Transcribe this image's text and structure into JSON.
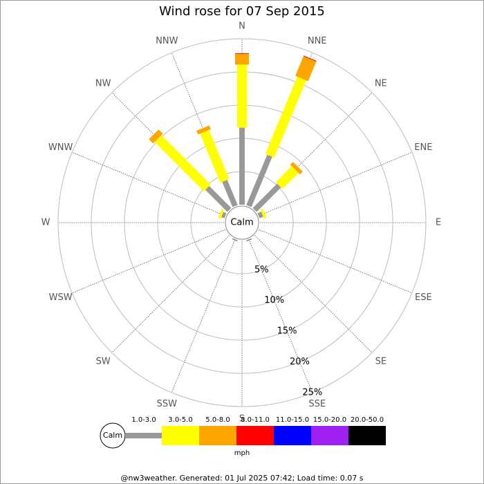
{
  "chart_data": {
    "type": "windrose",
    "title": "Wind rose for 07 Sep 2015",
    "calm_label": "Calm",
    "unit": "mph",
    "footer": "@nw3weather. Generated: 01 Jul 2025 07:42; Load time: 0.07 s",
    "categories": [
      "N",
      "NNE",
      "NE",
      "ENE",
      "E",
      "ESE",
      "SE",
      "SSE",
      "S",
      "SSW",
      "SW",
      "WSW",
      "W",
      "WNW",
      "NW",
      "NNW"
    ],
    "series": [
      {
        "name": "1.0-3.0",
        "color": "#999999",
        "values": [
          11.6,
          8.2,
          5.2,
          0.6,
          0,
          0,
          0,
          0.2,
          0,
          0.2,
          0,
          0,
          0,
          0.5,
          4.7,
          4.1
        ]
      },
      {
        "name": "3.0-5.0",
        "color": "#ffff00",
        "values": [
          9.5,
          12.6,
          3.4,
          0.4,
          0,
          0,
          0,
          0,
          0,
          0,
          0,
          0,
          0,
          0.4,
          10.5,
          8.0
        ]
      },
      {
        "name": "5.0-8.0",
        "color": "#ffa500",
        "values": [
          1.6,
          3.2,
          0.6,
          0,
          0,
          0,
          0,
          0,
          0,
          0,
          0,
          0,
          0,
          0,
          0.9,
          0.6
        ]
      },
      {
        "name": "8.0-11.0",
        "color": "#ff0000",
        "values": [
          0.1,
          0.1,
          0,
          0,
          0,
          0,
          0,
          0,
          0,
          0,
          0,
          0,
          0,
          0,
          0,
          0
        ]
      },
      {
        "name": "11.0-15.0",
        "color": "#0000ff",
        "values": [
          0,
          0,
          0,
          0,
          0,
          0,
          0,
          0,
          0,
          0,
          0,
          0,
          0,
          0,
          0,
          0
        ]
      },
      {
        "name": "15.0-20.0",
        "color": "#a020f0",
        "values": [
          0,
          0,
          0,
          0,
          0,
          0,
          0,
          0,
          0,
          0,
          0,
          0,
          0,
          0,
          0,
          0
        ]
      },
      {
        "name": "20.0-50.0",
        "color": "#000000",
        "values": [
          0,
          0,
          0,
          0,
          0,
          0,
          0,
          0,
          0,
          0,
          0,
          0,
          0,
          0,
          0,
          0
        ]
      }
    ],
    "ylim": [
      0,
      25
    ],
    "yticks": [
      {
        "value": 5,
        "label": "5%"
      },
      {
        "value": 10,
        "label": "10%"
      },
      {
        "value": 15,
        "label": "15%"
      },
      {
        "value": 20,
        "label": "20%"
      },
      {
        "value": 25,
        "label": "25%"
      }
    ]
  }
}
